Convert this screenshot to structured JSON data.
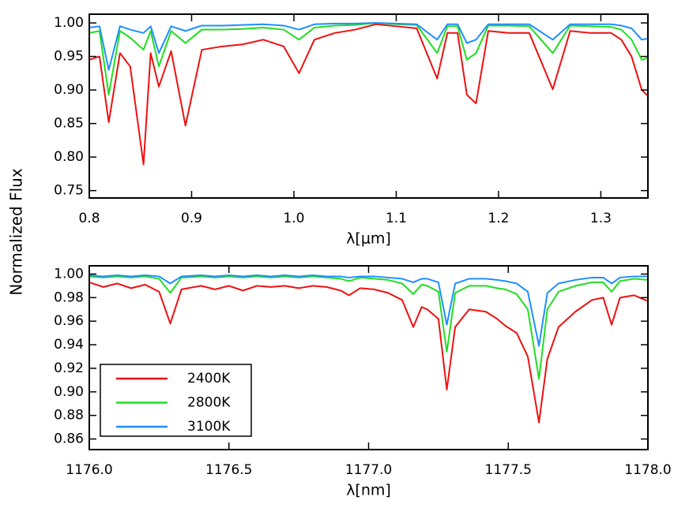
{
  "chart_data": [
    {
      "type": "line",
      "xlabel": "λ[μm]",
      "ylabel": "Normalized Flux",
      "x": [
        0.8,
        0.81,
        0.819,
        0.83,
        0.84,
        0.853,
        0.86,
        0.868,
        0.88,
        0.894,
        0.91,
        0.93,
        0.95,
        0.97,
        0.99,
        1.005,
        1.02,
        1.04,
        1.06,
        1.08,
        1.1,
        1.12,
        1.14,
        1.15,
        1.16,
        1.169,
        1.178,
        1.19,
        1.21,
        1.23,
        1.253,
        1.27,
        1.29,
        1.31,
        1.32,
        1.33,
        1.34,
        1.35
      ],
      "series": [
        {
          "name": "2400K",
          "color": "#ee1111",
          "values": [
            0.945,
            0.95,
            0.852,
            0.955,
            0.935,
            0.789,
            0.955,
            0.905,
            0.958,
            0.847,
            0.96,
            0.965,
            0.968,
            0.975,
            0.965,
            0.925,
            0.975,
            0.985,
            0.99,
            0.998,
            0.995,
            0.992,
            0.917,
            0.985,
            0.985,
            0.893,
            0.88,
            0.988,
            0.985,
            0.985,
            0.901,
            0.988,
            0.985,
            0.985,
            0.975,
            0.95,
            0.9,
            0.885
          ]
        },
        {
          "name": "2800K",
          "color": "#22dd22",
          "values": [
            0.985,
            0.988,
            0.893,
            0.988,
            0.978,
            0.96,
            0.988,
            0.935,
            0.988,
            0.97,
            0.99,
            0.99,
            0.991,
            0.993,
            0.99,
            0.975,
            0.993,
            0.996,
            0.997,
            1.0,
            0.998,
            0.997,
            0.955,
            0.995,
            0.995,
            0.945,
            0.955,
            0.996,
            0.996,
            0.995,
            0.955,
            0.996,
            0.995,
            0.994,
            0.99,
            0.975,
            0.945,
            0.95
          ]
        },
        {
          "name": "3100K",
          "color": "#1e8fff",
          "values": [
            0.993,
            0.995,
            0.93,
            0.995,
            0.99,
            0.985,
            0.995,
            0.955,
            0.995,
            0.988,
            0.996,
            0.996,
            0.997,
            0.998,
            0.996,
            0.99,
            0.998,
            0.999,
            0.999,
            1.0,
            0.999,
            0.998,
            0.975,
            0.998,
            0.998,
            0.97,
            0.975,
            0.998,
            0.998,
            0.998,
            0.975,
            0.998,
            0.998,
            0.998,
            0.996,
            0.992,
            0.975,
            0.978
          ]
        }
      ],
      "xlim": [
        0.8,
        1.346
      ],
      "ylim": [
        0.739,
        1.013
      ],
      "xticks": [
        0.8,
        0.9,
        {
          "value": 1,
          "label": "1.0"
        },
        1.1,
        1.2,
        1.3
      ],
      "yticks": [
        0.75,
        {
          "value": 0.8,
          "label": "0.80"
        },
        0.85,
        {
          "value": 0.9,
          "label": "0.90"
        },
        0.95,
        {
          "value": 1,
          "label": "1.00"
        }
      ]
    },
    {
      "type": "line",
      "xlabel": "λ[nm]",
      "legend": "lower left",
      "x": [
        1176.0,
        1176.05,
        1176.1,
        1176.15,
        1176.2,
        1176.25,
        1176.29,
        1176.33,
        1176.4,
        1176.45,
        1176.5,
        1176.55,
        1176.6,
        1176.65,
        1176.7,
        1176.75,
        1176.8,
        1176.85,
        1176.9,
        1176.93,
        1176.97,
        1177.02,
        1177.07,
        1177.12,
        1177.16,
        1177.19,
        1177.21,
        1177.25,
        1177.28,
        1177.31,
        1177.36,
        1177.42,
        1177.46,
        1177.49,
        1177.53,
        1177.57,
        1177.61,
        1177.64,
        1177.68,
        1177.74,
        1177.8,
        1177.84,
        1177.87,
        1177.9,
        1177.95,
        1178.0
      ],
      "series": [
        {
          "name": "2400K",
          "color": "#ee1111",
          "values": [
            0.993,
            0.989,
            0.992,
            0.988,
            0.991,
            0.985,
            0.958,
            0.987,
            0.99,
            0.987,
            0.99,
            0.986,
            0.99,
            0.989,
            0.99,
            0.988,
            0.99,
            0.989,
            0.986,
            0.982,
            0.988,
            0.987,
            0.984,
            0.978,
            0.955,
            0.972,
            0.97,
            0.962,
            0.902,
            0.955,
            0.97,
            0.968,
            0.962,
            0.956,
            0.95,
            0.93,
            0.874,
            0.928,
            0.955,
            0.968,
            0.978,
            0.98,
            0.957,
            0.98,
            0.982,
            0.977
          ]
        },
        {
          "name": "2800K",
          "color": "#22dd22",
          "values": [
            0.998,
            0.997,
            0.998,
            0.997,
            0.998,
            0.996,
            0.984,
            0.997,
            0.998,
            0.997,
            0.998,
            0.997,
            0.998,
            0.997,
            0.998,
            0.997,
            0.998,
            0.997,
            0.996,
            0.994,
            0.997,
            0.996,
            0.995,
            0.992,
            0.983,
            0.991,
            0.99,
            0.985,
            0.934,
            0.984,
            0.99,
            0.99,
            0.988,
            0.987,
            0.983,
            0.97,
            0.911,
            0.97,
            0.985,
            0.99,
            0.993,
            0.993,
            0.985,
            0.994,
            0.996,
            0.995
          ]
        },
        {
          "name": "3100K",
          "color": "#1e8fff",
          "values": [
            0.999,
            0.998,
            0.999,
            0.998,
            0.999,
            0.998,
            0.992,
            0.998,
            0.999,
            0.998,
            0.999,
            0.998,
            0.999,
            0.998,
            0.999,
            0.998,
            0.999,
            0.998,
            0.998,
            0.997,
            0.998,
            0.998,
            0.997,
            0.996,
            0.993,
            0.996,
            0.996,
            0.993,
            0.957,
            0.992,
            0.996,
            0.996,
            0.995,
            0.994,
            0.992,
            0.985,
            0.939,
            0.984,
            0.992,
            0.995,
            0.997,
            0.997,
            0.992,
            0.997,
            0.998,
            0.998
          ]
        }
      ],
      "xlim": [
        1176,
        1178
      ],
      "ylim": [
        0.851,
        1.007
      ],
      "xticks": [
        {
          "value": 1176,
          "label": "1176.0"
        },
        1176.5,
        {
          "value": 1177,
          "label": "1177.0"
        },
        1177.5,
        {
          "value": 1178,
          "label": "1178.0"
        }
      ],
      "yticks": [
        0.86,
        0.88,
        {
          "value": 0.9,
          "label": "0.90"
        },
        0.92,
        0.94,
        0.96,
        0.98,
        {
          "value": 1,
          "label": "1.00"
        }
      ]
    }
  ]
}
